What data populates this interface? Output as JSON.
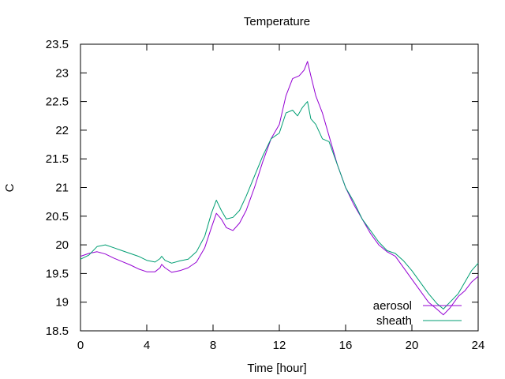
{
  "chart_data": {
    "type": "line",
    "title": "Temperature",
    "xlabel": "Time [hour]",
    "ylabel": "C",
    "xlim": [
      0,
      24
    ],
    "ylim": [
      18.5,
      23.5
    ],
    "xticks": [
      0,
      4,
      8,
      12,
      16,
      20,
      24
    ],
    "yticks": [
      18.5,
      19,
      19.5,
      20,
      20.5,
      21,
      21.5,
      22,
      22.5,
      23,
      23.5
    ],
    "grid": false,
    "legend_position": "bottom-right",
    "series": [
      {
        "name": "aerosol",
        "color": "#9400d3",
        "points": [
          [
            0,
            19.8
          ],
          [
            0.5,
            19.85
          ],
          [
            1,
            19.88
          ],
          [
            1.5,
            19.84
          ],
          [
            2,
            19.77
          ],
          [
            2.5,
            19.71
          ],
          [
            3,
            19.65
          ],
          [
            3.5,
            19.58
          ],
          [
            4,
            19.53
          ],
          [
            4.5,
            19.53
          ],
          [
            4.8,
            19.6
          ],
          [
            4.9,
            19.66
          ],
          [
            5.1,
            19.6
          ],
          [
            5.5,
            19.52
          ],
          [
            6,
            19.55
          ],
          [
            6.5,
            19.6
          ],
          [
            7,
            19.7
          ],
          [
            7.5,
            19.95
          ],
          [
            7.9,
            20.3
          ],
          [
            8.2,
            20.55
          ],
          [
            8.5,
            20.45
          ],
          [
            8.8,
            20.3
          ],
          [
            9.2,
            20.25
          ],
          [
            9.6,
            20.38
          ],
          [
            10,
            20.6
          ],
          [
            10.5,
            21.0
          ],
          [
            11,
            21.45
          ],
          [
            11.5,
            21.85
          ],
          [
            12,
            22.1
          ],
          [
            12.4,
            22.6
          ],
          [
            12.8,
            22.9
          ],
          [
            13.2,
            22.95
          ],
          [
            13.5,
            23.05
          ],
          [
            13.7,
            23.2
          ],
          [
            13.9,
            22.95
          ],
          [
            14.2,
            22.6
          ],
          [
            14.6,
            22.3
          ],
          [
            15,
            21.9
          ],
          [
            15.5,
            21.4
          ],
          [
            16,
            21.0
          ],
          [
            16.5,
            20.7
          ],
          [
            17,
            20.45
          ],
          [
            17.5,
            20.2
          ],
          [
            18,
            20.0
          ],
          [
            18.5,
            19.88
          ],
          [
            19,
            19.8
          ],
          [
            19.5,
            19.6
          ],
          [
            20,
            19.4
          ],
          [
            20.5,
            19.2
          ],
          [
            21,
            19.0
          ],
          [
            21.5,
            18.88
          ],
          [
            21.9,
            18.78
          ],
          [
            22.3,
            18.9
          ],
          [
            22.8,
            19.1
          ],
          [
            23.2,
            19.2
          ],
          [
            23.6,
            19.35
          ],
          [
            24,
            19.45
          ]
        ]
      },
      {
        "name": "sheath",
        "color": "#009e73",
        "points": [
          [
            0,
            19.75
          ],
          [
            0.5,
            19.82
          ],
          [
            1,
            19.97
          ],
          [
            1.5,
            20.0
          ],
          [
            2,
            19.95
          ],
          [
            2.5,
            19.9
          ],
          [
            3,
            19.85
          ],
          [
            3.5,
            19.8
          ],
          [
            4,
            19.73
          ],
          [
            4.5,
            19.7
          ],
          [
            4.8,
            19.76
          ],
          [
            4.9,
            19.8
          ],
          [
            5.1,
            19.73
          ],
          [
            5.5,
            19.68
          ],
          [
            6,
            19.72
          ],
          [
            6.5,
            19.75
          ],
          [
            7,
            19.88
          ],
          [
            7.5,
            20.15
          ],
          [
            7.9,
            20.55
          ],
          [
            8.2,
            20.78
          ],
          [
            8.5,
            20.6
          ],
          [
            8.8,
            20.45
          ],
          [
            9.2,
            20.48
          ],
          [
            9.6,
            20.6
          ],
          [
            10,
            20.85
          ],
          [
            10.5,
            21.2
          ],
          [
            11,
            21.55
          ],
          [
            11.5,
            21.85
          ],
          [
            12,
            21.95
          ],
          [
            12.4,
            22.3
          ],
          [
            12.8,
            22.35
          ],
          [
            13.1,
            22.25
          ],
          [
            13.4,
            22.4
          ],
          [
            13.7,
            22.5
          ],
          [
            13.9,
            22.2
          ],
          [
            14.2,
            22.1
          ],
          [
            14.6,
            21.85
          ],
          [
            15,
            21.8
          ],
          [
            15.5,
            21.4
          ],
          [
            16,
            21.0
          ],
          [
            16.5,
            20.75
          ],
          [
            17,
            20.45
          ],
          [
            17.5,
            20.25
          ],
          [
            18,
            20.05
          ],
          [
            18.5,
            19.9
          ],
          [
            19,
            19.85
          ],
          [
            19.5,
            19.72
          ],
          [
            20,
            19.55
          ],
          [
            20.5,
            19.35
          ],
          [
            21,
            19.15
          ],
          [
            21.5,
            18.98
          ],
          [
            21.9,
            18.88
          ],
          [
            22.3,
            19.0
          ],
          [
            22.8,
            19.15
          ],
          [
            23.2,
            19.35
          ],
          [
            23.6,
            19.55
          ],
          [
            24,
            19.68
          ]
        ]
      }
    ]
  }
}
